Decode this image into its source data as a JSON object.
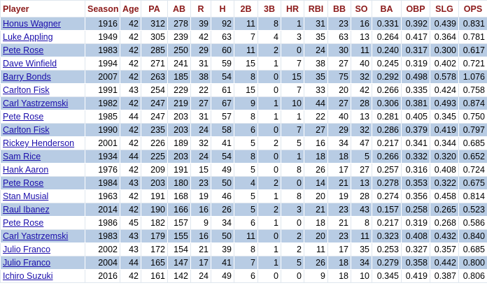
{
  "table": {
    "header": [
      "Player",
      "Season",
      "Age",
      "PA",
      "AB",
      "R",
      "H",
      "2B",
      "3B",
      "HR",
      "RBI",
      "BB",
      "SO",
      "BA",
      "OBP",
      "SLG",
      "OPS"
    ],
    "rows": [
      [
        "Honus Wagner",
        "1916",
        "42",
        "312",
        "278",
        "39",
        "92",
        "11",
        "8",
        "1",
        "31",
        "23",
        "16",
        "0.331",
        "0.392",
        "0.439",
        "0.831"
      ],
      [
        "Luke Appling",
        "1949",
        "42",
        "305",
        "239",
        "42",
        "63",
        "7",
        "4",
        "3",
        "35",
        "63",
        "13",
        "0.264",
        "0.417",
        "0.364",
        "0.781"
      ],
      [
        "Pete Rose",
        "1983",
        "42",
        "285",
        "250",
        "29",
        "60",
        "11",
        "2",
        "0",
        "24",
        "30",
        "11",
        "0.240",
        "0.317",
        "0.300",
        "0.617"
      ],
      [
        "Dave Winfield",
        "1994",
        "42",
        "271",
        "241",
        "31",
        "59",
        "15",
        "1",
        "7",
        "38",
        "27",
        "40",
        "0.245",
        "0.319",
        "0.402",
        "0.721"
      ],
      [
        "Barry Bonds",
        "2007",
        "42",
        "263",
        "185",
        "38",
        "54",
        "8",
        "0",
        "15",
        "35",
        "75",
        "32",
        "0.292",
        "0.498",
        "0.578",
        "1.076"
      ],
      [
        "Carlton Fisk",
        "1991",
        "43",
        "254",
        "229",
        "22",
        "61",
        "15",
        "0",
        "7",
        "33",
        "20",
        "42",
        "0.266",
        "0.335",
        "0.424",
        "0.758"
      ],
      [
        "Carl Yastrzemski",
        "1982",
        "42",
        "247",
        "219",
        "27",
        "67",
        "9",
        "1",
        "10",
        "44",
        "27",
        "28",
        "0.306",
        "0.381",
        "0.493",
        "0.874"
      ],
      [
        "Pete Rose",
        "1985",
        "44",
        "247",
        "203",
        "31",
        "57",
        "8",
        "1",
        "1",
        "22",
        "40",
        "13",
        "0.281",
        "0.405",
        "0.345",
        "0.750"
      ],
      [
        "Carlton Fisk",
        "1990",
        "42",
        "235",
        "203",
        "24",
        "58",
        "6",
        "0",
        "7",
        "27",
        "29",
        "32",
        "0.286",
        "0.379",
        "0.419",
        "0.797"
      ],
      [
        "Rickey Henderson",
        "2001",
        "42",
        "226",
        "189",
        "32",
        "41",
        "5",
        "2",
        "5",
        "16",
        "34",
        "47",
        "0.217",
        "0.341",
        "0.344",
        "0.685"
      ],
      [
        "Sam Rice",
        "1934",
        "44",
        "225",
        "203",
        "24",
        "54",
        "8",
        "0",
        "1",
        "18",
        "18",
        "5",
        "0.266",
        "0.332",
        "0.320",
        "0.652"
      ],
      [
        "Hank Aaron",
        "1976",
        "42",
        "209",
        "191",
        "15",
        "49",
        "5",
        "0",
        "8",
        "26",
        "17",
        "27",
        "0.257",
        "0.316",
        "0.408",
        "0.724"
      ],
      [
        "Pete Rose",
        "1984",
        "43",
        "203",
        "180",
        "23",
        "50",
        "4",
        "2",
        "0",
        "14",
        "21",
        "13",
        "0.278",
        "0.353",
        "0.322",
        "0.675"
      ],
      [
        "Stan Musial",
        "1963",
        "42",
        "191",
        "168",
        "19",
        "46",
        "5",
        "1",
        "8",
        "20",
        "19",
        "28",
        "0.274",
        "0.356",
        "0.458",
        "0.814"
      ],
      [
        "Raul Ibanez",
        "2014",
        "42",
        "190",
        "166",
        "16",
        "26",
        "5",
        "2",
        "3",
        "21",
        "23",
        "43",
        "0.157",
        "0.258",
        "0.265",
        "0.523"
      ],
      [
        "Pete Rose",
        "1986",
        "45",
        "182",
        "157",
        "9",
        "34",
        "6",
        "1",
        "0",
        "18",
        "21",
        "8",
        "0.217",
        "0.319",
        "0.268",
        "0.586"
      ],
      [
        "Carl Yastrzemski",
        "1983",
        "43",
        "179",
        "155",
        "16",
        "50",
        "11",
        "0",
        "2",
        "20",
        "23",
        "11",
        "0.323",
        "0.408",
        "0.432",
        "0.840"
      ],
      [
        "Julio Franco",
        "2002",
        "43",
        "172",
        "154",
        "21",
        "39",
        "8",
        "1",
        "2",
        "11",
        "17",
        "35",
        "0.253",
        "0.327",
        "0.357",
        "0.685"
      ],
      [
        "Julio Franco",
        "2004",
        "44",
        "165",
        "147",
        "17",
        "41",
        "7",
        "1",
        "5",
        "26",
        "18",
        "34",
        "0.279",
        "0.358",
        "0.442",
        "0.800"
      ],
      [
        "Ichiro Suzuki",
        "2016",
        "42",
        "161",
        "142",
        "24",
        "49",
        "6",
        "0",
        "0",
        "9",
        "18",
        "10",
        "0.345",
        "0.419",
        "0.387",
        "0.806"
      ]
    ]
  }
}
